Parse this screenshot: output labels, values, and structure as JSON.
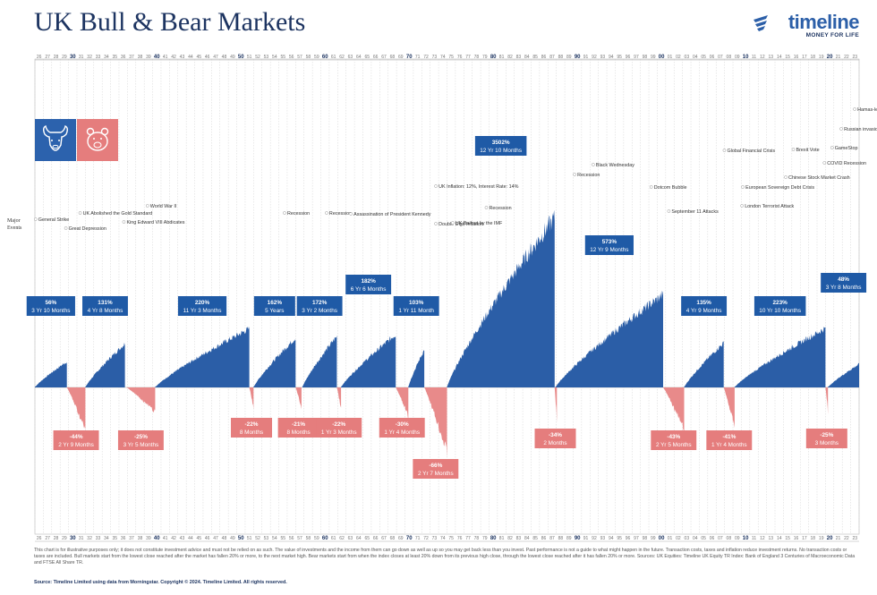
{
  "title": "UK Bull & Bear Markets",
  "logo": {
    "name": "timeline",
    "tagline": "MONEY FOR LIFE"
  },
  "side_label": "Major Events",
  "disclaimer": "This chart is for illustrative purposes only; it does not constitute investment advice and must not be relied on as such. The value of investments and the income from them can go down as well as up so you may get back less than you invest. Past performance is not a guide to what might happen in the future. Transaction costs, taxes and inflation reduce investment returns. No transaction costs or taxes are included. Bull markets start from the lowest close reached after the market has fallen 20% or more, to the next market high. Bear markets start from when the index closes at least 20% down from its previous high close, through the lowest close reached after it has fallen 20% or more. Sources: UK Equities: Timeline UK Equity TR Index: Bank of England 3 Centuries of Macroeconomic Data and FTSE All Share TR.",
  "source": "Source: Timeline Limited using data from Morningstar. Copyright © 2024. Timeline Limited. All rights reserved.",
  "colors": {
    "bull": "#2b5ea7",
    "bear": "#e88a8a",
    "navy": "#1d3461",
    "bullIcon": "#2c62ad",
    "bearIcon": "#e57d7d"
  },
  "chart_data": {
    "type": "area",
    "x_range": [
      1926,
      2024
    ],
    "decades": [
      "30",
      "40",
      "50",
      "60",
      "70",
      "80",
      "90",
      "00",
      "10",
      "20"
    ],
    "years": [
      "26",
      "27",
      "28",
      "29",
      "30",
      "31",
      "32",
      "33",
      "34",
      "35",
      "36",
      "37",
      "38",
      "39",
      "40",
      "41",
      "42",
      "43",
      "44",
      "45",
      "46",
      "47",
      "48",
      "49",
      "50",
      "51",
      "52",
      "53",
      "54",
      "55",
      "56",
      "57",
      "58",
      "59",
      "60",
      "61",
      "62",
      "63",
      "64",
      "65",
      "66",
      "67",
      "68",
      "69",
      "70",
      "71",
      "72",
      "73",
      "74",
      "75",
      "76",
      "77",
      "78",
      "79",
      "80",
      "81",
      "82",
      "83",
      "84",
      "85",
      "86",
      "87",
      "88",
      "89",
      "90",
      "91",
      "92",
      "93",
      "94",
      "95",
      "96",
      "97",
      "98",
      "99",
      "00",
      "01",
      "02",
      "03",
      "04",
      "05",
      "06",
      "07",
      "08",
      "09",
      "10",
      "11",
      "12",
      "13",
      "14",
      "15",
      "16",
      "17",
      "18",
      "19",
      "20",
      "21",
      "22",
      "23"
    ],
    "bull_markets": [
      {
        "start": 1926.0,
        "end": 1929.8,
        "pct": "56%",
        "duration": "3 Yr 10 Months"
      },
      {
        "start": 1932.0,
        "end": 1936.7,
        "pct": "131%",
        "duration": "4 Yr 8 Months"
      },
      {
        "start": 1940.3,
        "end": 1951.5,
        "pct": "220%",
        "duration": "11 Yr 3 Months"
      },
      {
        "start": 1952.0,
        "end": 1957.0,
        "pct": "162%",
        "duration": "5 Years"
      },
      {
        "start": 1957.8,
        "end": 1961.9,
        "pct": "172%",
        "duration": "3 Yr 2 Months"
      },
      {
        "start": 1962.4,
        "end": 1968.9,
        "pct": "182%",
        "duration": "6 Yr 6 Months"
      },
      {
        "start": 1970.4,
        "end": 1972.3,
        "pct": "103%",
        "duration": "1 Yr 11 Month"
      },
      {
        "start": 1975.0,
        "end": 1987.8,
        "pct": "3502%",
        "duration": "12 Yr 10 Months"
      },
      {
        "start": 1987.9,
        "end": 2000.7,
        "pct": "573%",
        "duration": "12 Yr 9 Months"
      },
      {
        "start": 2003.2,
        "end": 2007.9,
        "pct": "135%",
        "duration": "4 Yr 9 Months"
      },
      {
        "start": 2009.2,
        "end": 2020.0,
        "pct": "223%",
        "duration": "10 Yr 10 Months"
      },
      {
        "start": 2020.3,
        "end": 2024.0,
        "pct": "48%",
        "duration": "3 Yr 8 Months"
      }
    ],
    "bear_markets": [
      {
        "start": 1929.8,
        "end": 1932.0,
        "pct": "-44%",
        "duration": "2 Yr 9 Months",
        "trough": 44
      },
      {
        "start": 1936.9,
        "end": 1940.3,
        "pct": "-25%",
        "duration": "3 Yr 5 Months",
        "trough": 25
      },
      {
        "start": 1951.5,
        "end": 1952.0,
        "pct": "-22%",
        "duration": "8 Months",
        "trough": 22
      },
      {
        "start": 1957.0,
        "end": 1957.7,
        "pct": "-21%",
        "duration": "8 Months",
        "trough": 21
      },
      {
        "start": 1961.9,
        "end": 1962.4,
        "pct": "-22%",
        "duration": "1 Yr 3 Months",
        "trough": 22
      },
      {
        "start": 1968.9,
        "end": 1970.4,
        "pct": "-30%",
        "duration": "1 Yr 4 Months",
        "trough": 30
      },
      {
        "start": 1972.3,
        "end": 1975.0,
        "pct": "-66%",
        "duration": "2 Yr 7 Months",
        "trough": 66
      },
      {
        "start": 1987.8,
        "end": 1987.95,
        "pct": "-34%",
        "duration": "2 Months",
        "trough": 34
      },
      {
        "start": 2000.7,
        "end": 2003.2,
        "pct": "-43%",
        "duration": "2 Yr 5 Months",
        "trough": 43
      },
      {
        "start": 2007.9,
        "end": 2009.2,
        "pct": "-41%",
        "duration": "1 Yr 4 Months",
        "trough": 41
      },
      {
        "start": 2020.0,
        "end": 2020.3,
        "pct": "-25%",
        "duration": "3 Months",
        "trough": 25
      }
    ],
    "events": [
      {
        "text": "General Strike",
        "year": 1926.4
      },
      {
        "text": "UK Abolished the Gold Standard",
        "year": 1931.7
      },
      {
        "text": "Great Depression",
        "year": 1930.0
      },
      {
        "text": "King Edward VIII Abdicates",
        "year": 1936.9
      },
      {
        "text": "World War II",
        "year": 1939.7
      },
      {
        "text": "Recession",
        "year": 1956.0
      },
      {
        "text": "Recession",
        "year": 1961.0
      },
      {
        "text": "Assassination of President Kennedy",
        "year": 1963.9
      },
      {
        "text": "UK Inflation: 12%, Interest Rate: 14%",
        "year": 1974.0
      },
      {
        "text": "Double Digit Inflation",
        "year": 1974.0
      },
      {
        "text": "UK Bailout by the IMF",
        "year": 1976.0
      },
      {
        "text": "Recession",
        "year": 1980.0
      },
      {
        "text": "Recession",
        "year": 1990.5
      },
      {
        "text": "Black Wednesday",
        "year": 1992.7
      },
      {
        "text": "Dotcom Bubble",
        "year": 1999.6
      },
      {
        "text": "September 11 Attacks",
        "year": 2001.7
      },
      {
        "text": "Global Financial Crisis",
        "year": 2008.3
      },
      {
        "text": "European Sovereign Debt Crisis",
        "year": 2010.5
      },
      {
        "text": "London Terrorist Attack",
        "year": 2010.4
      },
      {
        "text": "Brexit Vote",
        "year": 2016.5
      },
      {
        "text": "COVID Recession",
        "year": 2020.2
      },
      {
        "text": "GameStop",
        "year": 2021.1
      },
      {
        "text": "Russian invasion of Ukraine",
        "year": 2022.2
      },
      {
        "text": "Chinese Stock Market Crash",
        "year": 2015.6
      },
      {
        "text": "Hamas-led attack on Israel",
        "year": 2023.8
      }
    ]
  }
}
